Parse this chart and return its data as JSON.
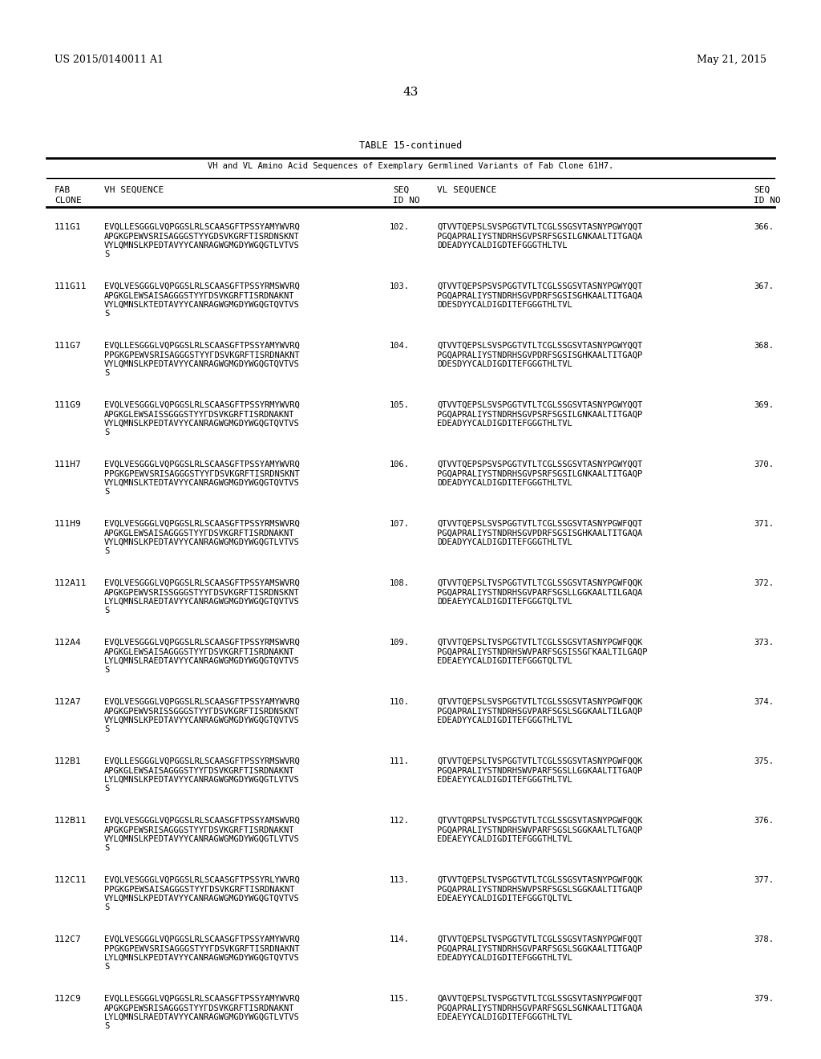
{
  "bg_color": "#ffffff",
  "header_left": "US 2015/0140011 A1",
  "header_right": "May 21, 2015",
  "page_number": "43",
  "table_title": "TABLE 15-continued",
  "table_subtitle": "VH and VL Amino Acid Sequences of Exemplary Germlined Variants of Fab Clone 61H7.",
  "entries": [
    {
      "clone": "111G1",
      "vh_line1": "EVQLLESGGGLVQPGGSLRLSCAASGFTPSSYAMYWVRQ 102.",
      "vh_line2": "APGKGPEWVSRISAGGGSTYYGDSVKGRFTISRDNSKNT",
      "vh_line3": "VYLQMNSLKPEDTAVYYCANRAGWGMGDYWGQGTLVTVS",
      "vh_line4": "S",
      "seq_vh": "102.",
      "vl_line1": "QTVVTQEPSLSVSPGGTVTLTCGLSSGSVTASNYPGWYQQT",
      "vl_line2": "PGQAPRALIYSTNDRHSGVPSRFSGSILGNKAALTITGAQA",
      "vl_line3": "DDEADYYCALDIGDTEFGGGTHLTVL",
      "seq_vl": "366."
    },
    {
      "clone": "111G11",
      "vh_line1": "EVQLVESGGGLVQPGGSLRLSCAASGFTPSSYRMSWVRQ 103.",
      "vh_line2": "APGKGLEWSAISAGGGSTYYГDSVKGRFTISRDNAKNT",
      "vh_line3": "VYLQMNSLKTEDTAVYYCANRAGWGMGDYWGQGTQVTVS",
      "vh_line4": "S",
      "seq_vh": "103.",
      "vl_line1": "QTVVTQEPSPSVSPGGTVTLTCGLSSGSVTASNYPGWYQQT",
      "vl_line2": "PGQAPRALIYSTNDRHSGVPDRFSGSISGНKAALTITGAQA",
      "vl_line3": "DDESDYYCALDIGDITEFGGGTHLTVL",
      "seq_vl": "367."
    },
    {
      "clone": "111G7",
      "vh_line1": "EVQLLESGGGLVQPGGSLRLSCAASGFTPSSYAMYWVRQ 104.",
      "vh_line2": "PPGKGPEWVSRISAGGGSTYYГDSVKGRFTISRDNAKNT",
      "vh_line3": "VYLQMNSLKPEDTAVYYCANRAGWGMGDYWGQGTQVTVS",
      "vh_line4": "S",
      "seq_vh": "104.",
      "vl_line1": "QTVVTQEPSLSVSPGGTVTLTCGLSSGSVTASNYPGWYQQT",
      "vl_line2": "PGQAPRALIYSTNDRHSGVPDRFSGSISGНKAALTITGAQP",
      "vl_line3": "DDESDYYCALDIGDITEFGGGTHLTVL",
      "seq_vl": "368."
    },
    {
      "clone": "111G9",
      "vh_line1": "EVQLVESGGGLVQPGGSLRLSCAASGFTPSSYRMYWVRQ 105.",
      "vh_line2": "APGKGLEWSAISSGGGSTYYГDSVKGRFTISRDNAKNT",
      "vh_line3": "VYLQMNSLKPEDTAVYYCANRAGWGMGDYWGQGTQVTVS",
      "vh_line4": "S",
      "seq_vh": "105.",
      "vl_line1": "QTVVTQEPSLSVSPGGTVTLTCGLSSGSVTASNYPGWYQQT",
      "vl_line2": "PGQAPRALIYSTNDRHSGVPSRFSGSILGNKAALTITGAQP",
      "vl_line3": "EDEADYYCALDIGDITEFGGGTHLTVL",
      "seq_vl": "369."
    },
    {
      "clone": "111H7",
      "vh_line1": "EVQLVESGGGLVQPGGSLRLSCAASGFTPSSYAMYWVRQ 106.",
      "vh_line2": "PPGKGPEWVSRISAGGGSTYYГDSVKGRFTISRDNSKNT",
      "vh_line3": "VYLQMNSLKTEDTAVYYCANRAGWGMGDYWGQGTQVTVS",
      "vh_line4": "S",
      "seq_vh": "106.",
      "vl_line1": "QTVVTQEPSPSVSPGGTVTLTCGLSSGSVTASNYPGWYQQT",
      "vl_line2": "PGQAPRALIYSTNDRHSGVPSRFSGSILGNKAALTITGAQP",
      "vl_line3": "DDEADYYCALDIGDITEFGGGTHLTVL",
      "seq_vl": "370."
    },
    {
      "clone": "111H9",
      "vh_line1": "EVQLVESGGGLVQPGGSLRLSCAASGFTPSSYRMSWVRQ 107.",
      "vh_line2": "APGKGLEWSAISAGGGSTYYГDSVKGRFTISRDNAKNT",
      "vh_line3": "VYLQMNSLKPEDTAVYYCANRAGWGMGDYWGQGTLVTVS",
      "vh_line4": "S",
      "seq_vh": "107.",
      "vl_line1": "QTVVTQEPSLSVSPGGTVTLTCGLSSGSVTASNYPGWFQQT",
      "vl_line2": "PGQAPRALIYSTNDRHSGVPDRFSGSISGНKAALTITGAQA",
      "vl_line3": "DDEADYYCALDIGDITEFGGGTHLTVL",
      "seq_vl": "371."
    },
    {
      "clone": "112A11",
      "vh_line1": "EVQLVESGGGLVQPGGSLRLSCAASGFTPSSYAMSWVRQ 108.",
      "vh_line2": "APGKGPEWVSRISSGGGSTYYГDSVKGRFTISRDNSKNT",
      "vh_line3": "LYLQMNSLRAEDTAVYYCANRAGWGMGDYWGQGTQVTVS",
      "vh_line4": "S",
      "seq_vh": "108.",
      "vl_line1": "QTVVTQEPSLTVSPGGTVTLTCGLSSGSVTASNYPGWFQQK",
      "vl_line2": "PGQAPRALIYSTNDRHSGVPARFSGSLLGGKAALTILGAQA",
      "vl_line3": "DDEAEYYCALDIGDITEFGGGTQLTVL",
      "seq_vl": "372."
    },
    {
      "clone": "112A4",
      "vh_line1": "EVQLVESGGGLVQPGGSLRLSCAASGFTPSSYRMSWVRQ 109.",
      "vh_line2": "APGKGLEWSAISAGGGSTYYГDSVKGRFTISRDNAKNT",
      "vh_line3": "LYLQMNSLRAEDTAVYYCANRAGWGMGDYWGQGTQVTVS",
      "vh_line4": "S",
      "seq_vh": "109.",
      "vl_line1": "QTVVTQEPSLTVSPGGTVTLTCGLSSGSVTASNYPGWFQQK",
      "vl_line2": "PGQAPRALIYSTNDRHSWVPARFSGSISSGГKAALTILGAQP",
      "vl_line3": "EDEAEYYCALDIGDITEFGGGTQLTVL",
      "seq_vl": "373."
    },
    {
      "clone": "112A7",
      "vh_line1": "EVQLVESGGGLVQPGGSLRLSCAASGFTPSSYAMYWVRQ 110.",
      "vh_line2": "APGKGPEWVSRISSGGGSTYYГDSVKGRFTISRDNSKNT",
      "vh_line3": "VYLQMNSLKPEDTAVYYCANRAGWGMGDYWGQGTQVTVS",
      "vh_line4": "S",
      "seq_vh": "110.",
      "vl_line1": "QTVVTQEPSLSVSPGGTVTLTCGLSSGSVTASNYPGWFQQK",
      "vl_line2": "PGQAPRALIYSTNDRHSGVPARFSGSLSGGKAALTILGAQP",
      "vl_line3": "EDEADYYCALDIGDITEFGGGTHLTVL",
      "seq_vl": "374."
    },
    {
      "clone": "112B1",
      "vh_line1": "EVQLLESGGGLVQPGGSLRLSCAASGFTPSSYRMSWVRQ 111.",
      "vh_line2": "APGKGLEWSAISAGGGSTYYГDSVKGRFTISRDNAKNT",
      "vh_line3": "LYLQMNSLKPEDTAVYYCANRAGWGMGDYWGQGTLVTVS",
      "vh_line4": "S",
      "seq_vh": "111.",
      "vl_line1": "QTVVTQEPSLTVSPGGTVTLTCGLSSGSVTASNYPGWFQQK",
      "vl_line2": "PGQAPRALIYSTNDRHSWVPARFSGSLLGGKAALTITGAQP",
      "vl_line3": "EDEAEYYCALDIGDITEFGGGTHLTVL",
      "seq_vl": "375."
    },
    {
      "clone": "112B11",
      "vh_line1": "EVQLVESGGGLVQPGGSLRLSCAASGFTPSSYAMSWVRQ 112.",
      "vh_line2": "APGKGPEWSRISAGGGSTYYГDSVKGRFTISRDNAKNT",
      "vh_line3": "VYLQMNSLKPEDTAVYYCANRAGWGMGDYWGQGTLVTVS",
      "vh_line4": "S",
      "seq_vh": "112.",
      "vl_line1": "QTVVTQRPSLTVSPGGTVTLTCGLSSGSVTASNYPGWFQQK",
      "vl_line2": "PGQAPRALIYSTNDRHSWVPARFSGSLSGGKAALTLTGAQP",
      "vl_line3": "EDEAEYYCALDIGDITEFGGGTHLTVL",
      "seq_vl": "376."
    },
    {
      "clone": "112C11",
      "vh_line1": "EVQLVESGGGLVQPGGSLRLSCAASGFTPSSYRLYWVRQ 113.",
      "vh_line2": "PPGKGPEWSAISAGGGSTYYГDSVKGRFTISRDNAKNT",
      "vh_line3": "VYLQMNSLKPEDTAVYYCANRAGWGMGDYWGQGTQVTVS",
      "vh_line4": "S",
      "seq_vh": "113.",
      "vl_line1": "QTVVTQEPSLTVSPGGTVTLTCGLSSGSVTASNYPGWFQQK",
      "vl_line2": "PGQAPRALIYSTNDRHSWVPSRFSGSLSGGKAALTITGAQP",
      "vl_line3": "EDEAEYYCALDIGDITEFGGGTQLTVL",
      "seq_vl": "377."
    },
    {
      "clone": "112C7",
      "vh_line1": "EVQLVESGGGLVQPGGSLRLSCAASGFTPSSYAMYWVRQ 114.",
      "vh_line2": "PPGKGPEWVSRISAGGGSTYYГDSVKGRFTISRDNAKNT",
      "vh_line3": "LYLQMNSLKPEDTAVYYCANRAGWGMGDYWGQGTQVTVS",
      "vh_line4": "S",
      "seq_vh": "114.",
      "vl_line1": "QTVVTQEPSLTVSPGGTVTLTCGLSSGSVTASNYPGWFQQT",
      "vl_line2": "PGQAPRALIYSTNDRHSGVPARFSGSLSGGKAALTITGAQP",
      "vl_line3": "EDEADYYCALDIGDITEFGGGTHLTVL",
      "seq_vl": "378."
    },
    {
      "clone": "112C9",
      "vh_line1": "EVQLLESGGGLVQPGGSLRLSCAASGFTPSSYAMYWVRQ 115.",
      "vh_line2": "APGKGPEWSRISAGGGSTYYГDSVKGRFTISRDNAKNT",
      "vh_line3": "LYLQMNSLRAEDTAVYYCANRAGWGMGDYWGQGTLVTVS",
      "vh_line4": "S",
      "seq_vh": "115.",
      "vl_line1": "QAVVTQEPSLTVSPGGTVTLTCGLSSGSVTASNYPGWFQQT",
      "vl_line2": "PGQAPRALIYSTNDRHSGVPARFSGSLSGNKAALTITGAQA",
      "vl_line3": "EDEAEYYCALDIGDITEFGGGTHLTVL",
      "seq_vl": "379."
    }
  ]
}
